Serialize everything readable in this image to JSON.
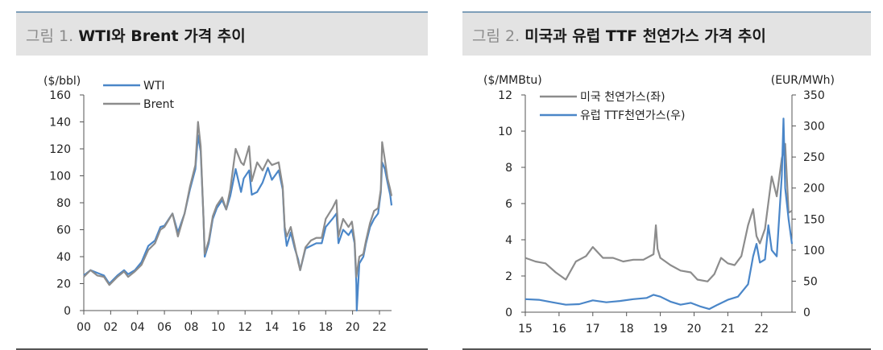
{
  "charts": [
    {
      "figure_label": "그림 1.",
      "figure_title": "WTI와 Brent 가격 추이",
      "chart_data": {
        "type": "line",
        "title": "WTI와 Brent 가격 추이",
        "ylabel": "($/bbl)",
        "ylim": [
          0,
          160
        ],
        "yticks": [
          0,
          20,
          40,
          60,
          80,
          100,
          120,
          140,
          160
        ],
        "xlim": [
          2000,
          2022.9
        ],
        "xticks": [
          2000,
          2002,
          2004,
          2006,
          2008,
          2010,
          2012,
          2014,
          2016,
          2018,
          2020,
          2022
        ],
        "xtick_labels": [
          "00",
          "02",
          "04",
          "06",
          "08",
          "10",
          "12",
          "14",
          "16",
          "18",
          "20",
          "22"
        ],
        "grid": false,
        "legend": "top-left",
        "series": [
          {
            "name": "WTI",
            "color": "#4a86c8",
            "x": [
              2000.0,
              2000.5,
              2001.0,
              2001.5,
              2001.9,
              2002.5,
              2003.0,
              2003.3,
              2003.8,
              2004.3,
              2004.8,
              2005.3,
              2005.7,
              2006.0,
              2006.6,
              2007.0,
              2007.5,
              2007.9,
              2008.3,
              2008.5,
              2008.7,
              2008.9,
              2009.0,
              2009.3,
              2009.6,
              2009.9,
              2010.3,
              2010.6,
              2010.9,
              2011.3,
              2011.7,
              2011.9,
              2012.3,
              2012.5,
              2012.9,
              2013.3,
              2013.7,
              2014.0,
              2014.5,
              2014.8,
              2014.95,
              2015.1,
              2015.4,
              2015.7,
              2015.95,
              2016.1,
              2016.5,
              2016.9,
              2017.3,
              2017.7,
              2018.0,
              2018.5,
              2018.8,
              2018.95,
              2019.3,
              2019.7,
              2019.95,
              2020.15,
              2020.28,
              2020.31,
              2020.5,
              2020.8,
              2021.0,
              2021.3,
              2021.6,
              2021.9,
              2022.1,
              2022.2,
              2022.4,
              2022.6,
              2022.8,
              2022.9
            ],
            "values": [
              26,
              30,
              28,
              26,
              20,
              26,
              30,
              27,
              30,
              36,
              48,
              52,
              62,
              63,
              72,
              58,
              72,
              90,
              105,
              130,
              118,
              70,
              40,
              50,
              68,
              76,
              82,
              75,
              85,
              105,
              88,
              98,
              104,
              86,
              88,
              95,
              106,
              97,
              104,
              90,
              60,
              48,
              58,
              46,
              38,
              30,
              46,
              48,
              50,
              50,
              62,
              68,
              72,
              50,
              60,
              56,
              60,
              50,
              20,
              0,
              35,
              40,
              50,
              62,
              68,
              72,
              88,
              110,
              105,
              95,
              86,
              78
            ]
          },
          {
            "name": "Brent",
            "color": "#8c8c8c",
            "x": [
              2000.0,
              2000.5,
              2001.0,
              2001.5,
              2001.9,
              2002.5,
              2003.0,
              2003.3,
              2003.8,
              2004.3,
              2004.8,
              2005.3,
              2005.7,
              2006.0,
              2006.6,
              2007.0,
              2007.5,
              2007.9,
              2008.3,
              2008.5,
              2008.7,
              2008.9,
              2009.0,
              2009.3,
              2009.6,
              2009.9,
              2010.3,
              2010.6,
              2010.9,
              2011.3,
              2011.7,
              2011.9,
              2012.3,
              2012.5,
              2012.9,
              2013.3,
              2013.7,
              2014.0,
              2014.5,
              2014.8,
              2014.95,
              2015.1,
              2015.4,
              2015.7,
              2015.95,
              2016.1,
              2016.5,
              2016.9,
              2017.3,
              2017.7,
              2018.0,
              2018.5,
              2018.8,
              2018.95,
              2019.3,
              2019.7,
              2019.95,
              2020.15,
              2020.28,
              2020.5,
              2020.8,
              2021.0,
              2021.3,
              2021.6,
              2021.9,
              2022.1,
              2022.2,
              2022.4,
              2022.6,
              2022.8,
              2022.9
            ],
            "values": [
              25,
              30,
              26,
              25,
              19,
              25,
              29,
              25,
              29,
              34,
              45,
              50,
              60,
              62,
              72,
              55,
              72,
              92,
              108,
              140,
              122,
              70,
              42,
              52,
              70,
              78,
              84,
              75,
              90,
              120,
              110,
              108,
              122,
              96,
              110,
              104,
              112,
              108,
              110,
              92,
              62,
              55,
              62,
              48,
              36,
              30,
              47,
              52,
              54,
              54,
              68,
              76,
              82,
              55,
              68,
              62,
              66,
              52,
              25,
              40,
              42,
              52,
              65,
              74,
              76,
              90,
              125,
              112,
              98,
              90,
              85
            ]
          }
        ]
      }
    },
    {
      "figure_label": "그림 2.",
      "figure_title": "미국과 유럽 TTF 천연가스 가격 추이",
      "chart_data": {
        "type": "line",
        "title": "미국과 유럽 TTF 천연가스 가격 추이",
        "ylabel": "($/MMBtu)",
        "ylabel_right": "(EUR/MWh)",
        "ylim": [
          0,
          12
        ],
        "yticks": [
          0,
          2,
          4,
          6,
          8,
          10,
          12
        ],
        "ylim_right": [
          0,
          350
        ],
        "yticks_right": [
          0,
          50,
          100,
          150,
          200,
          250,
          300,
          350
        ],
        "xlim": [
          2015,
          2022.9
        ],
        "xticks": [
          2015,
          2016,
          2017,
          2018,
          2019,
          2020,
          2021,
          2022
        ],
        "xtick_labels": [
          "15",
          "16",
          "17",
          "18",
          "19",
          "20",
          "21",
          "22"
        ],
        "grid": false,
        "legend": "top-left",
        "series": [
          {
            "name": "미국 천연가스(좌)",
            "axis": "left",
            "color": "#8c8c8c",
            "x": [
              2015.0,
              2015.3,
              2015.6,
              2015.9,
              2016.2,
              2016.5,
              2016.8,
              2017.0,
              2017.3,
              2017.6,
              2017.9,
              2018.2,
              2018.5,
              2018.8,
              2018.87,
              2018.92,
              2019.0,
              2019.3,
              2019.6,
              2019.9,
              2020.1,
              2020.4,
              2020.6,
              2020.8,
              2021.0,
              2021.2,
              2021.4,
              2021.6,
              2021.75,
              2021.85,
              2021.95,
              2022.1,
              2022.3,
              2022.45,
              2022.6,
              2022.7,
              2022.8,
              2022.9
            ],
            "values": [
              3.0,
              2.8,
              2.7,
              2.2,
              1.8,
              2.8,
              3.1,
              3.6,
              3.0,
              3.0,
              2.8,
              2.9,
              2.9,
              3.2,
              4.8,
              3.5,
              3.0,
              2.6,
              2.3,
              2.2,
              1.8,
              1.7,
              2.1,
              3.0,
              2.7,
              2.6,
              3.1,
              4.8,
              5.7,
              4.2,
              3.8,
              4.6,
              7.5,
              6.4,
              8.5,
              9.3,
              5.5,
              5.6
            ]
          },
          {
            "name": "유럽 TTF천연가스(우)",
            "axis": "right",
            "color": "#4a86c8",
            "x": [
              2015.0,
              2015.4,
              2015.8,
              2016.2,
              2016.6,
              2017.0,
              2017.4,
              2017.8,
              2018.2,
              2018.6,
              2018.8,
              2019.0,
              2019.3,
              2019.6,
              2019.9,
              2020.2,
              2020.45,
              2020.7,
              2021.0,
              2021.3,
              2021.6,
              2021.75,
              2021.85,
              2021.95,
              2022.1,
              2022.2,
              2022.3,
              2022.45,
              2022.6,
              2022.65,
              2022.7,
              2022.8,
              2022.9
            ],
            "values": [
              21,
              20,
              16,
              12,
              13,
              19,
              16,
              18,
              21,
              23,
              28,
              25,
              17,
              12,
              15,
              9,
              5,
              12,
              20,
              25,
              45,
              90,
              110,
              80,
              85,
              140,
              100,
              90,
              220,
              312,
              200,
              150,
              110
            ]
          }
        ]
      }
    }
  ]
}
